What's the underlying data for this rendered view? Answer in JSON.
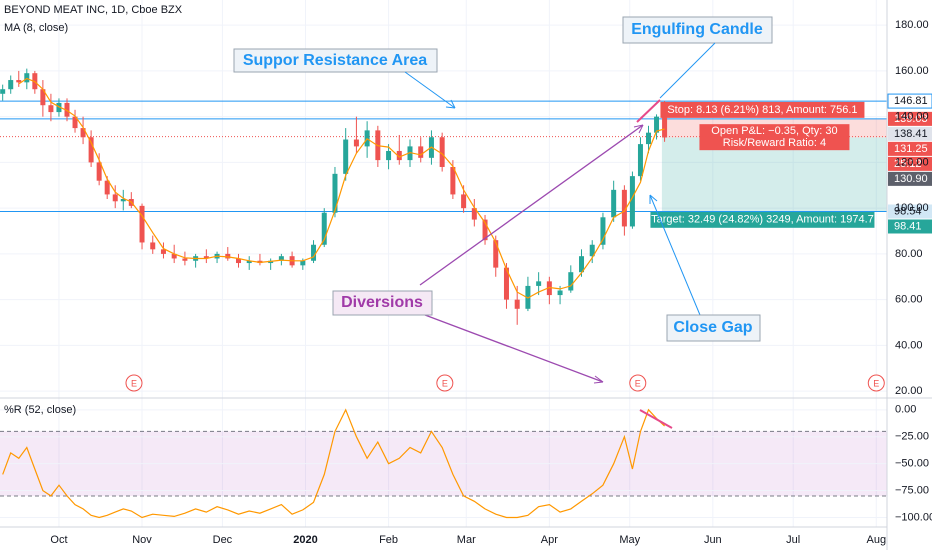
{
  "chart_data": {
    "type": "candlestick",
    "title": "BEYOND MEAT INC, 1D, Cboe BZX",
    "xlim": [
      8,
      339
    ],
    "ylim": [
      17,
      191
    ],
    "yticks": [
      {
        "value": 20,
        "label": "20.00"
      },
      {
        "value": 40,
        "label": "40.00"
      },
      {
        "value": 60,
        "label": "60.00"
      },
      {
        "value": 80,
        "label": "80.00"
      },
      {
        "value": 100,
        "label": "100.00"
      },
      {
        "value": 120,
        "label": "120.00"
      },
      {
        "value": 140,
        "label": "140.00"
      },
      {
        "value": 160,
        "label": "160.00"
      },
      {
        "value": 180,
        "label": "180.00"
      }
    ],
    "xticks": [
      {
        "value": 30,
        "label": "Oct"
      },
      {
        "value": 61,
        "label": "Nov"
      },
      {
        "value": 91,
        "label": "Dec"
      },
      {
        "value": 122,
        "label": "2020"
      },
      {
        "value": 153,
        "label": "Feb"
      },
      {
        "value": 182,
        "label": "Mar"
      },
      {
        "value": 213,
        "label": "Apr"
      },
      {
        "value": 243,
        "label": "May"
      },
      {
        "value": 274,
        "label": "Jun"
      },
      {
        "value": 304,
        "label": "Jul"
      },
      {
        "value": 335,
        "label": "Aug"
      }
    ],
    "grid": true,
    "up_color": "#26a69a",
    "down_color": "#ef5350",
    "x": [
      9,
      12,
      15,
      18,
      21,
      24,
      27,
      30,
      33,
      36,
      39,
      42,
      45,
      48,
      51,
      54,
      57,
      61,
      65,
      69,
      73,
      77,
      81,
      85,
      89,
      93,
      97,
      101,
      105,
      109,
      113,
      117,
      121,
      125,
      129,
      133,
      137,
      141,
      145,
      149,
      153,
      157,
      161,
      165,
      169,
      173,
      177,
      181,
      185,
      189,
      193,
      197,
      201,
      205,
      209,
      213,
      217,
      221,
      225,
      229,
      233,
      237,
      241,
      244,
      247,
      250,
      253,
      256
    ],
    "open": [
      150,
      152,
      156,
      155,
      159,
      152,
      145,
      142,
      146,
      140,
      135,
      131,
      120,
      112,
      106,
      103,
      104,
      101,
      85,
      82,
      80,
      78,
      77,
      79,
      78,
      80,
      78,
      76,
      77,
      76,
      77,
      79,
      75,
      77,
      84,
      98,
      115,
      130,
      127,
      134,
      121,
      125,
      121,
      127,
      122,
      131,
      118,
      106,
      100,
      95,
      86,
      74,
      60,
      56,
      66,
      68,
      62,
      64,
      72,
      79,
      84,
      96,
      108,
      92,
      114,
      128,
      133,
      140
    ],
    "high": [
      154,
      158,
      160,
      161,
      160,
      156,
      150,
      148,
      148,
      143,
      140,
      134,
      124,
      114,
      110,
      108,
      107,
      102,
      88,
      85,
      84,
      81,
      80,
      82,
      81,
      83,
      80,
      79,
      80,
      78,
      80,
      81,
      78,
      86,
      100,
      118,
      135,
      140,
      138,
      136,
      128,
      132,
      130,
      131,
      134,
      133,
      121,
      110,
      104,
      97,
      88,
      76,
      66,
      70,
      72,
      70,
      66,
      75,
      82,
      86,
      98,
      112,
      110,
      116,
      131,
      136,
      141,
      146.81
    ],
    "low": [
      147,
      150,
      153,
      152,
      150,
      140,
      138,
      140,
      138,
      133,
      128,
      118,
      110,
      104,
      100,
      99,
      100,
      82,
      80,
      78,
      76,
      75,
      74,
      76,
      76,
      77,
      74,
      73,
      75,
      73,
      75,
      74,
      73,
      76,
      83,
      96,
      112,
      124,
      122,
      118,
      117,
      119,
      118,
      120,
      119,
      116,
      104,
      98,
      92,
      84,
      70,
      56,
      49,
      55,
      62,
      58,
      58,
      63,
      70,
      76,
      82,
      94,
      88,
      91,
      112,
      124,
      130,
      129
    ],
    "close": [
      152,
      156,
      155,
      159,
      152,
      145,
      142,
      146,
      140,
      135,
      131,
      120,
      112,
      106,
      103,
      104,
      101,
      85,
      82,
      80,
      78,
      77,
      79,
      78,
      80,
      78,
      76,
      77,
      76,
      77,
      79,
      75,
      77,
      84,
      98,
      115,
      130,
      127,
      134,
      121,
      125,
      121,
      127,
      122,
      131,
      118,
      106,
      100,
      95,
      86,
      74,
      60,
      56,
      66,
      68,
      62,
      64,
      72,
      79,
      84,
      96,
      108,
      92,
      114,
      128,
      133,
      140,
      130.9
    ],
    "ma": {
      "name": "MA (8, close)",
      "color": "#ff9800",
      "values": [
        null,
        null,
        154.3,
        156.7,
        155.3,
        152,
        146.3,
        144.3,
        142.7,
        140.3,
        135.3,
        128.7,
        121,
        112.7,
        107,
        104.3,
        102.7,
        96.7,
        89.3,
        82.3,
        80,
        78.3,
        78,
        78,
        79,
        78.7,
        78,
        77,
        76.3,
        76.7,
        77.3,
        77,
        77,
        78.7,
        86.3,
        99,
        114.3,
        124,
        130.3,
        127.3,
        126.7,
        122.3,
        124.3,
        123.3,
        126.7,
        123.7,
        118.3,
        108,
        100.3,
        93.7,
        85,
        73.3,
        63.3,
        60.7,
        63.3,
        65.3,
        64.7,
        66,
        71.7,
        78.3,
        86.3,
        96,
        98.7,
        104.7,
        111.3,
        125,
        133.7,
        134.6
      ]
    },
    "earnings": {
      "label": "E",
      "x": [
        58,
        174,
        246,
        335
      ]
    },
    "price_labels": [
      {
        "value": 146.81,
        "bg": "#ffffff",
        "fg": "#131722",
        "line": "#2196f3"
      },
      {
        "value": 139.03,
        "bg": "#ef5350",
        "fg": "#ffffff",
        "line": "#2196f3"
      },
      {
        "value": 138.41,
        "bg": "#e0e3eb",
        "fg": "#131722"
      },
      {
        "value": 131.25,
        "bg": "#ef5350",
        "fg": "#ffffff",
        "line": "#ef5350"
      },
      {
        "value": 125.12,
        "label": "25:12",
        "bg": "#ef5350",
        "fg": "#ffffff"
      },
      {
        "value": 130.9,
        "label": "130.90",
        "bg": "#5d606b",
        "fg": "#ffffff"
      },
      {
        "value": 98.54,
        "bg": "#d1e7f5",
        "fg": "#131722",
        "line": "#2196f3"
      },
      {
        "value": 98.41,
        "bg": "#26a69a",
        "fg": "#ffffff"
      }
    ],
    "position": {
      "entry": 130.9,
      "stop": 139.03,
      "target": 98.41,
      "x": [
        255,
        339
      ],
      "stop_text": "Stop: 8.13 (6.21%) 813, Amount: 756.1",
      "pnl_text": "Open P&L: −0.35, Qty: 30",
      "rr_text": "Risk/Reward Ratio: 4",
      "target_text": "Target: 32.49 (24.82%) 3249, Amount: 1974.7"
    },
    "annotations": {
      "support": "Suppor Resistance Area",
      "engulfing": "Engulfing Candle",
      "diversions": "Diversions",
      "gap": "Close Gap"
    },
    "wpr": {
      "name": "%R (52, close)",
      "color": "#ff9800",
      "ylim": [
        -107,
        11
      ],
      "yticks": [
        {
          "value": 0,
          "label": "0.00"
        },
        {
          "value": -25,
          "label": "−25.00"
        },
        {
          "value": -50,
          "label": "−50.00"
        },
        {
          "value": -75,
          "label": "−75.00"
        },
        {
          "value": -100,
          "label": "−100.00"
        }
      ],
      "band": [
        -20,
        -80
      ],
      "values": [
        -60,
        -40,
        -45,
        -35,
        -55,
        -75,
        -80,
        -70,
        -80,
        -88,
        -92,
        -98,
        -100,
        -98,
        -95,
        -92,
        -94,
        -100,
        -97,
        -98,
        -99,
        -96,
        -92,
        -95,
        -90,
        -93,
        -97,
        -94,
        -96,
        -92,
        -88,
        -97,
        -93,
        -86,
        -60,
        -20,
        0,
        -25,
        -45,
        -30,
        -50,
        -45,
        -35,
        -40,
        -20,
        -35,
        -60,
        -80,
        -85,
        -92,
        -97,
        -100,
        -100,
        -98,
        -90,
        -88,
        -95,
        -92,
        -85,
        -78,
        -70,
        -50,
        -25,
        -55,
        -20,
        0,
        -8,
        -15
      ]
    }
  }
}
